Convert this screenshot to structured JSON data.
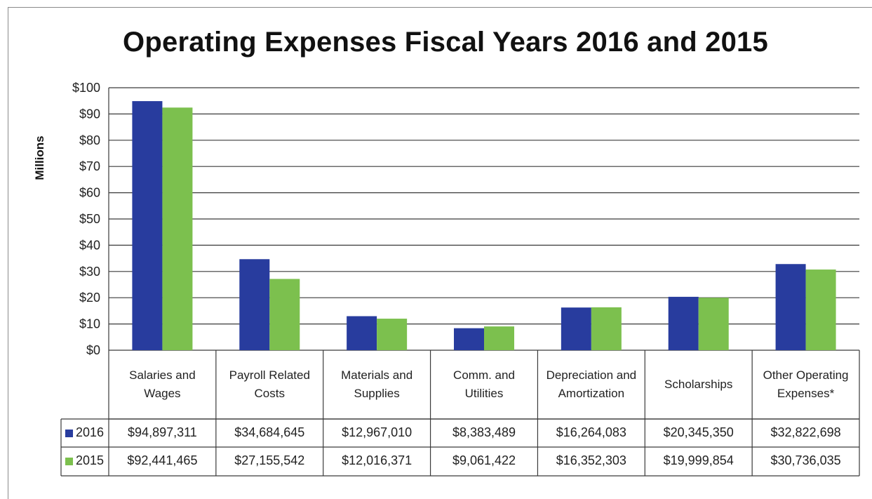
{
  "chart_data": {
    "type": "bar",
    "title": "Operating Expenses Fiscal Years 2016 and 2015",
    "ylabel": "Millions",
    "xlabel": "",
    "ylim": [
      0,
      100
    ],
    "yticks": [
      "$0",
      "$10",
      "$20",
      "$30",
      "$40",
      "$50",
      "$60",
      "$70",
      "$80",
      "$90",
      "$100"
    ],
    "grid": true,
    "legend_position": "data-table-left",
    "categories": [
      "Salaries and Wages",
      "Payroll Related Costs",
      "Materials and Supplies",
      "Comm. and Utilities",
      "Depreciation and Amortization",
      "Scholarships",
      "Other Operating Expenses*"
    ],
    "series": [
      {
        "name": "2016",
        "color": "#283c9e",
        "values": [
          94.897311,
          34.684645,
          12.96701,
          8.383489,
          16.264083,
          20.34535,
          32.822698
        ],
        "labels": [
          "$94,897,311",
          "$34,684,645",
          "$12,967,010",
          "$8,383,489",
          "$16,264,083",
          "$20,345,350",
          "$32,822,698"
        ]
      },
      {
        "name": "2015",
        "color": "#7cc04e",
        "values": [
          92.441465,
          27.155542,
          12.016371,
          9.061422,
          16.352303,
          19.999854,
          30.736035
        ],
        "labels": [
          "$92,441,465",
          "$27,155,542",
          "$12,016,371",
          "$9,061,422",
          "$16,352,303",
          "$19,999,854",
          "$30,736,035"
        ]
      }
    ]
  }
}
